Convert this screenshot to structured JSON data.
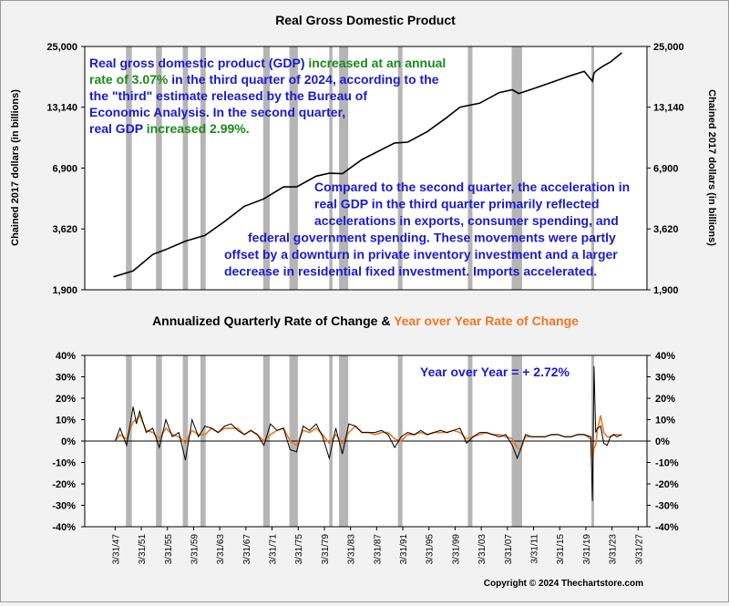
{
  "chart_data": [
    {
      "type": "line",
      "title": "Real Gross Domestic Product",
      "ylabel": "Chained 2017 dollars (in billions)",
      "ylabel_right": "Chained 2017 dollars (in billions)",
      "yscale": "log",
      "ylim": [
        1900,
        25000
      ],
      "yticks": [
        "25,000",
        "13,140",
        "6,900",
        "3,620",
        "1,900"
      ],
      "ytick_values": [
        25000,
        13140,
        6900,
        3620,
        1900
      ],
      "x": [
        1947,
        1950,
        1953,
        1955,
        1958,
        1961,
        1964,
        1967,
        1970,
        1973,
        1975,
        1978,
        1980,
        1982,
        1985,
        1988,
        1990,
        1992,
        1995,
        1998,
        2000,
        2003,
        2006,
        2008,
        2009,
        2011,
        2014,
        2017,
        2019,
        2020.25,
        2020.5,
        2021,
        2022,
        2023,
        2024.75
      ],
      "series": [
        {
          "values": [
            2180,
            2320,
            2760,
            2910,
            3180,
            3380,
            3920,
            4600,
            4980,
            5650,
            5650,
            6330,
            6530,
            6500,
            7550,
            8380,
            9000,
            9070,
            10150,
            11800,
            13140,
            13700,
            15340,
            15800,
            15200,
            15900,
            17100,
            18400,
            19200,
            17300,
            18900,
            19500,
            20400,
            21200,
            23400
          ]
        }
      ],
      "recessions": [
        [
          1948.9,
          1949.8
        ],
        [
          1953.5,
          1954.4
        ],
        [
          1957.6,
          1958.4
        ],
        [
          1960.3,
          1961.1
        ],
        [
          1969.9,
          1970.9
        ],
        [
          1973.9,
          1975.2
        ],
        [
          1980.0,
          1980.5
        ],
        [
          1981.5,
          1982.9
        ],
        [
          1990.5,
          1991.2
        ],
        [
          2001.2,
          2001.9
        ],
        [
          2007.9,
          2009.5
        ],
        [
          2020.1,
          2020.4
        ]
      ]
    },
    {
      "type": "line",
      "title": "Annualized Quarterly Rate of Change & Year over Year Rate of Change",
      "ylim": [
        -40,
        40
      ],
      "yticks": [
        "40%",
        "30%",
        "20%",
        "10%",
        "0%",
        "-10%",
        "-20%",
        "-30%",
        "-40%"
      ],
      "ytick_values": [
        40,
        30,
        20,
        10,
        0,
        -10,
        -20,
        -30,
        -40
      ],
      "xticks": [
        "3/31/47",
        "3/31/51",
        "3/31/55",
        "3/31/59",
        "3/31/63",
        "3/31/67",
        "3/31/71",
        "3/31/75",
        "3/31/79",
        "3/31/83",
        "3/31/87",
        "3/31/91",
        "3/31/95",
        "3/31/99",
        "3/31/03",
        "3/31/07",
        "3/31/11",
        "3/31/15",
        "3/31/19",
        "3/31/23",
        "3/31/27"
      ],
      "xtick_values": [
        1947.25,
        1951.25,
        1955.25,
        1959.25,
        1963.25,
        1967.25,
        1971.25,
        1975.25,
        1979.25,
        1983.25,
        1987.25,
        1991.25,
        1995.25,
        1999.25,
        2003.25,
        2007.25,
        2011.25,
        2015.25,
        2019.25,
        2023.25,
        2027.25
      ],
      "x": [
        1947.25,
        1948,
        1949,
        1950,
        1950.5,
        1951,
        1952,
        1953,
        1954,
        1955,
        1956,
        1957,
        1958,
        1959,
        1960,
        1961,
        1962,
        1963,
        1964,
        1965,
        1966,
        1967,
        1968,
        1969,
        1970,
        1971,
        1972,
        1973,
        1974,
        1975,
        1976,
        1977,
        1978,
        1979,
        1980,
        1981,
        1982,
        1983,
        1984,
        1985,
        1986,
        1987,
        1988,
        1989,
        1990,
        1991,
        1992,
        1993,
        1994,
        1995,
        1996,
        1997,
        1998,
        1999,
        2000,
        2001,
        2002,
        2003,
        2004,
        2005,
        2006,
        2007,
        2008,
        2008.75,
        2009.25,
        2010,
        2011,
        2012,
        2013,
        2014,
        2015,
        2016,
        2017,
        2018,
        2019,
        2020,
        2020.25,
        2020.5,
        2020.75,
        2021,
        2021.5,
        2022,
        2022.5,
        2023,
        2023.5,
        2024,
        2024.75
      ],
      "series": [
        {
          "name": "Annualized Quarterly Rate of Change",
          "color": "#000000",
          "values": [
            0,
            6,
            -2,
            16,
            8,
            14,
            4,
            6,
            -3,
            10,
            2,
            4,
            -9,
            10,
            2,
            7,
            6,
            4,
            7,
            8,
            5,
            3,
            5,
            3,
            -2,
            8,
            5,
            6,
            -4,
            -5,
            7,
            5,
            8,
            2,
            -8,
            6,
            -6,
            8,
            7,
            4,
            4,
            4,
            5,
            3,
            -3,
            2,
            4,
            3,
            5,
            3,
            4,
            5,
            4,
            5,
            6,
            -1,
            2,
            4,
            4,
            3,
            2,
            3,
            -2,
            -8,
            -4,
            3,
            2,
            2,
            2,
            3,
            3,
            2,
            2,
            3,
            3,
            2,
            -28,
            35,
            4,
            6,
            7,
            -1,
            -2,
            2,
            3,
            2,
            3.07
          ]
        },
        {
          "name": "Year over Year Rate of Change",
          "color": "#ee7722",
          "values": [
            0,
            3,
            1,
            9,
            10,
            12,
            5,
            4,
            1,
            6,
            3,
            2,
            -1,
            5,
            3,
            3,
            6,
            4,
            6,
            6,
            6,
            3,
            5,
            3,
            0,
            3,
            5,
            6,
            0,
            -2,
            5,
            4,
            6,
            3,
            -1,
            3,
            -1,
            4,
            7,
            4,
            4,
            3,
            4,
            4,
            1,
            0,
            3,
            3,
            4,
            3,
            4,
            4,
            4,
            5,
            4,
            1,
            2,
            3,
            4,
            3,
            3,
            2,
            1,
            -3,
            -4,
            2,
            2,
            2,
            2,
            3,
            3,
            2,
            2,
            3,
            3,
            1,
            -8,
            -3,
            -2,
            5,
            12,
            4,
            2,
            2,
            3,
            3,
            2.72
          ]
        }
      ],
      "zero_line": true,
      "recessions": [
        [
          1948.9,
          1949.8
        ],
        [
          1953.5,
          1954.4
        ],
        [
          1957.6,
          1958.4
        ],
        [
          1960.3,
          1961.1
        ],
        [
          1969.9,
          1970.9
        ],
        [
          1973.9,
          1975.2
        ],
        [
          1980.0,
          1980.5
        ],
        [
          1981.5,
          1982.9
        ],
        [
          1990.5,
          1991.2
        ],
        [
          2001.2,
          2001.9
        ],
        [
          2007.9,
          2009.5
        ],
        [
          2020.1,
          2020.4
        ]
      ]
    }
  ],
  "colors": {
    "text_blue": "#1a1ad0",
    "text_green": "#1a8a1a",
    "recession": "#b5b5b5",
    "yoy_title": "#ee7722"
  },
  "annotations": {
    "top_note_lines": [
      [
        {
          "text": "Real gross domestic product (GDP) ",
          "color": "blue"
        },
        {
          "text": "increased at an annual",
          "color": "green"
        }
      ],
      [
        {
          "text": "rate of 3.07%",
          "color": "green"
        },
        {
          "text": " in the third quarter of 2024, according to the",
          "color": "blue"
        }
      ],
      [
        {
          "text": "the \"third\" estimate released by the Bureau of",
          "color": "blue"
        }
      ],
      [
        {
          "text": "Economic Analysis. In the second quarter,",
          "color": "blue"
        }
      ],
      [
        {
          "text": "real GDP ",
          "color": "blue"
        },
        {
          "text": "increased 2.99%.",
          "color": "green"
        }
      ]
    ],
    "bottom_note_lines": [
      "Compared to the second quarter, the acceleration in",
      "real GDP in the third quarter primarily reflected",
      "accelerations in exports, consumer spending, and",
      "federal government spending. These movements were partly",
      "offset by a downturn in private inventory investment and a larger",
      "decrease in residential fixed investment. Imports accelerated."
    ],
    "yoy_label": "Year over Year = + 2.72%"
  },
  "lower_title_parts": {
    "part1": "Annualized Quarterly Rate of Change & ",
    "part2": "Year over Year Rate of Change"
  },
  "copyright": "Copyright © 2024 Thechartstore.com"
}
